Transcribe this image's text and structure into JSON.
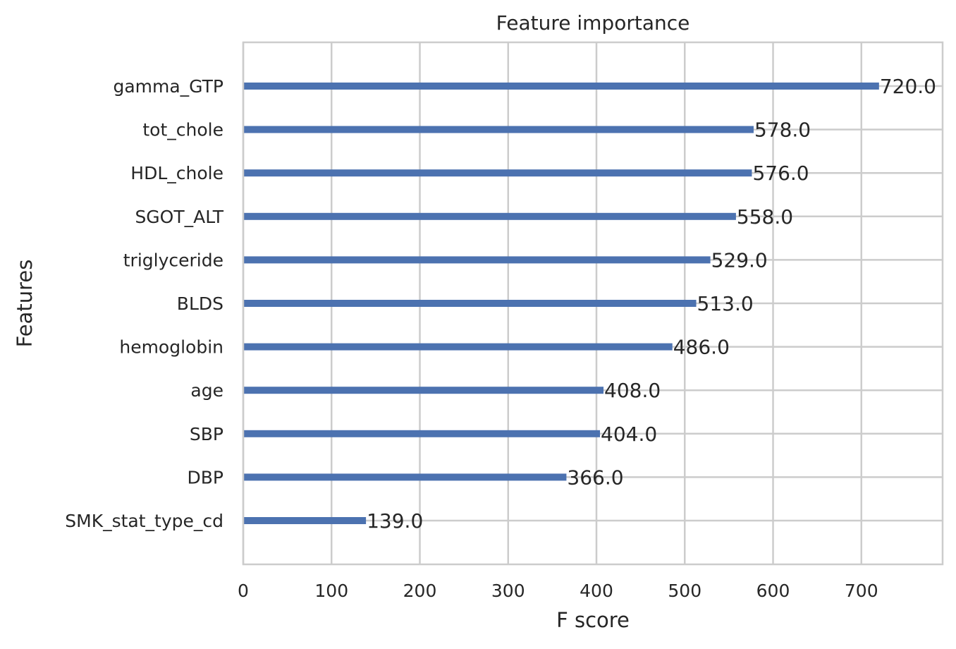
{
  "chart_data": {
    "type": "bar",
    "orientation": "horizontal",
    "title": "Feature importance",
    "xlabel": "F score",
    "ylabel": "Features",
    "xlim": [
      0,
      792
    ],
    "x_ticks": [
      0,
      100,
      200,
      300,
      400,
      500,
      600,
      700
    ],
    "grid": true,
    "categories": [
      "gamma_GTP",
      "tot_chole",
      "HDL_chole",
      "SGOT_ALT",
      "triglyceride",
      "BLDS",
      "hemoglobin",
      "age",
      "SBP",
      "DBP",
      "SMK_stat_type_cd"
    ],
    "values": [
      720.0,
      578.0,
      576.0,
      558.0,
      529.0,
      513.0,
      486.0,
      408.0,
      404.0,
      366.0,
      139.0
    ],
    "data_labels": [
      "720.0",
      "578.0",
      "576.0",
      "558.0",
      "529.0",
      "513.0",
      "486.0",
      "408.0",
      "404.0",
      "366.0",
      "139.0"
    ],
    "bar_color": "#4c72b0",
    "grid_color": "#cccccc",
    "text_color": "#262626"
  }
}
